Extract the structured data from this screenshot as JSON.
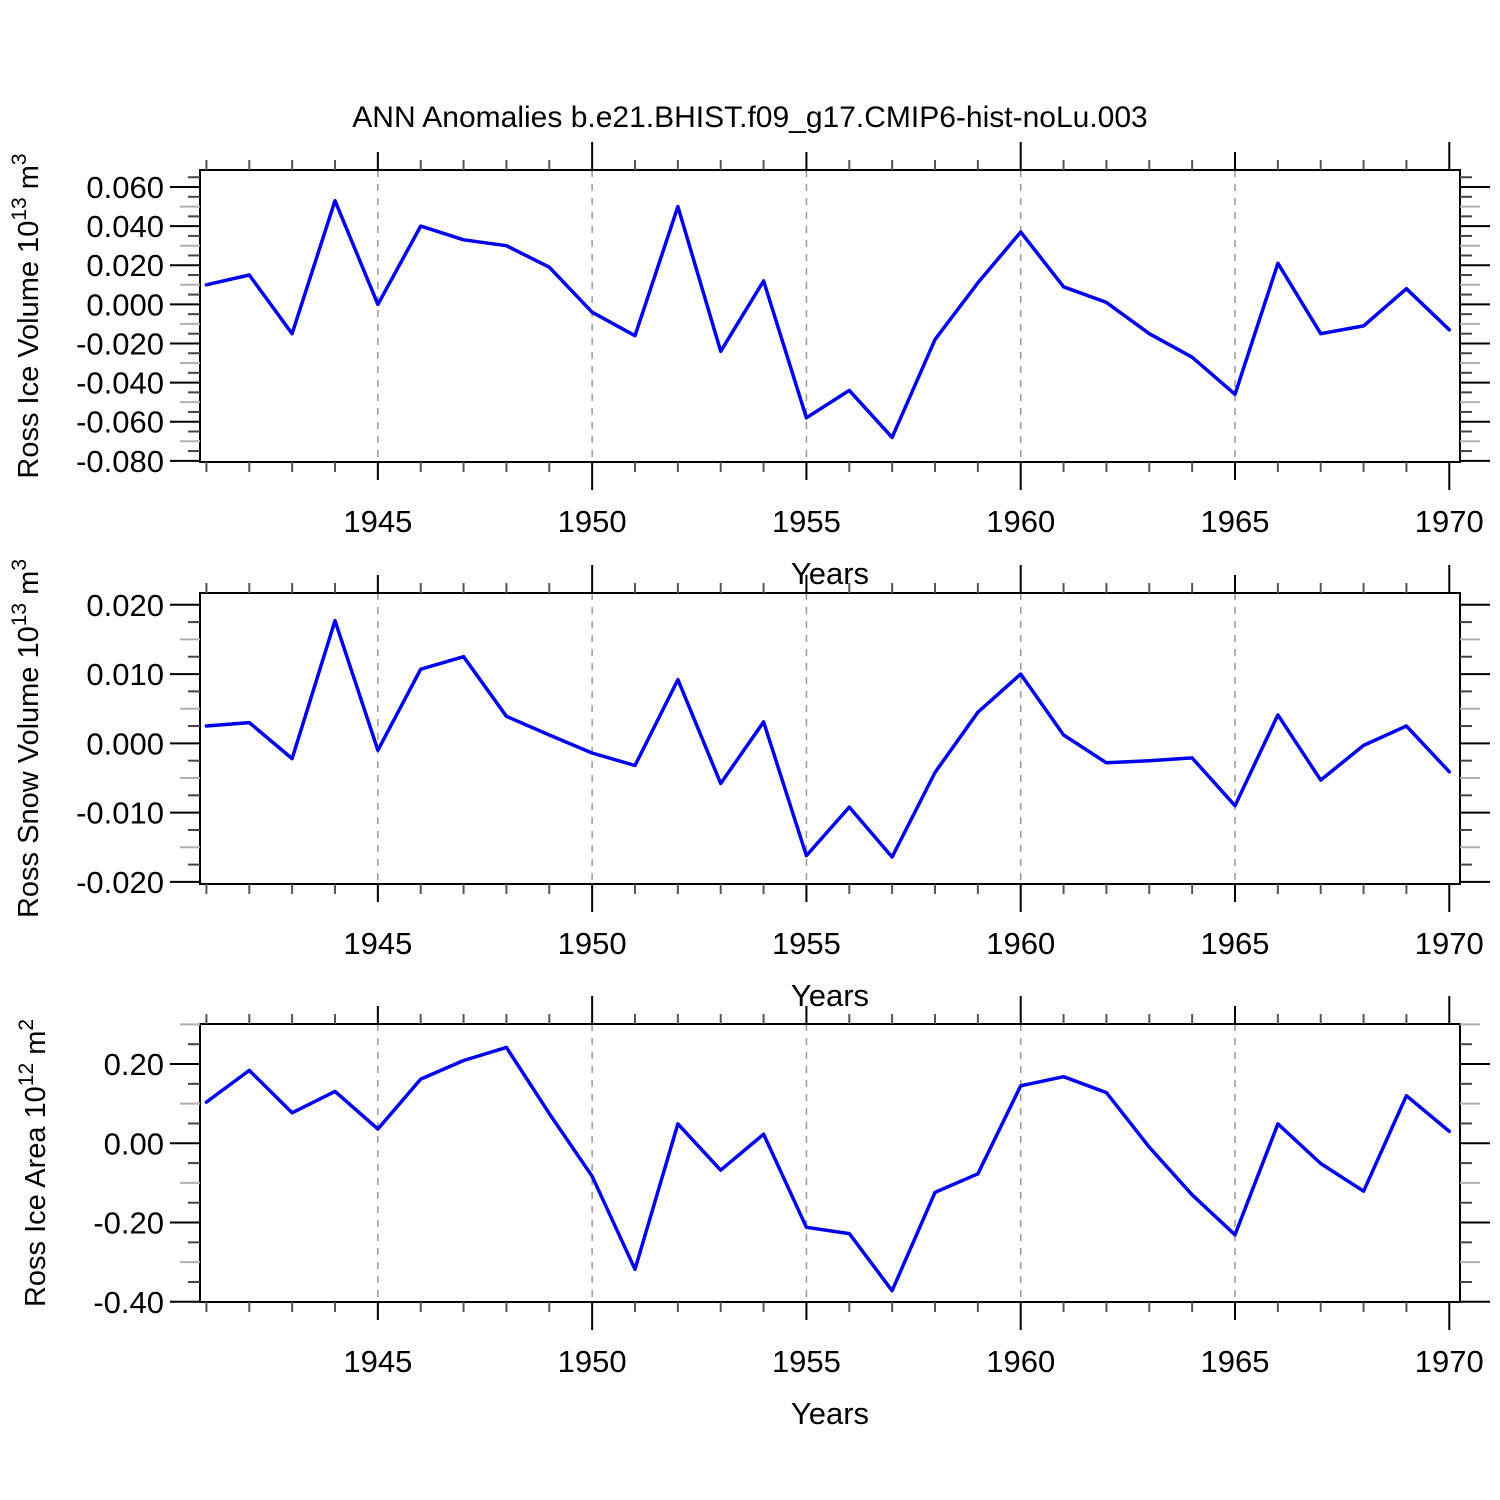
{
  "chart_data": {
    "type": "line",
    "title": "ANN Anomalies b.e21.BHIST.f09_g17.CMIP6-hist-noLu.003",
    "xlabel": "Years",
    "x": [
      1941,
      1942,
      1943,
      1944,
      1945,
      1946,
      1947,
      1948,
      1949,
      1950,
      1951,
      1952,
      1953,
      1954,
      1955,
      1956,
      1957,
      1958,
      1959,
      1960,
      1961,
      1962,
      1963,
      1964,
      1965,
      1966,
      1967,
      1968,
      1969,
      1970
    ],
    "xlim": [
      1940.85,
      1970.25
    ],
    "x_tick_labels": [
      "1945",
      "1950",
      "1955",
      "1960",
      "1965",
      "1970"
    ],
    "x_gridlines": [
      1945,
      1950,
      1955,
      1960,
      1965
    ],
    "grid_on": true,
    "legend": "none",
    "line_color": "#0000EE",
    "gridline_color": "#999999",
    "frame_color": "#000000",
    "background": "#ffffff",
    "panels": [
      {
        "name": "ross-ice-volume",
        "ylabel_parts": [
          {
            "text": "Ross Ice Volume 10"
          },
          {
            "sup": "13"
          },
          {
            "text": " m"
          },
          {
            "sup": "3"
          }
        ],
        "ylim": [
          -0.0806,
          0.0687
        ],
        "y_tick_labels": [
          "0.060",
          "0.040",
          "0.020",
          "0.000",
          "-0.020",
          "-0.040",
          "-0.060",
          "-0.080"
        ],
        "y_major_step": 0.02,
        "y_minor_step": 0.005,
        "values": [
          0.01,
          0.015,
          -0.015,
          0.053,
          0.0,
          0.04,
          0.033,
          0.03,
          0.019,
          -0.004,
          -0.016,
          0.05,
          -0.024,
          0.012,
          -0.058,
          -0.044,
          -0.068,
          -0.018,
          0.011,
          0.037,
          0.009,
          0.001,
          -0.015,
          -0.027,
          -0.046,
          0.021,
          -0.015,
          -0.011,
          0.008,
          -0.013
        ]
      },
      {
        "name": "ross-snow-volume",
        "ylabel_parts": [
          {
            "text": "Ross Snow Volume 10"
          },
          {
            "sup": "13"
          },
          {
            "text": " m"
          },
          {
            "sup": "3"
          }
        ],
        "ylim": [
          -0.0203,
          0.0217
        ],
        "y_tick_labels": [
          "0.020",
          "0.010",
          "0.000",
          "-0.010",
          "-0.020"
        ],
        "y_major_step": 0.01,
        "y_minor_step": 0.0025,
        "values": [
          0.0025,
          0.003,
          -0.0022,
          0.0177,
          -0.001,
          0.0107,
          0.0125,
          0.0039,
          0.0012,
          -0.0014,
          -0.0032,
          0.0092,
          -0.0058,
          0.0031,
          -0.0162,
          -0.0092,
          -0.0164,
          -0.0042,
          0.0045,
          0.01,
          0.0012,
          -0.0028,
          -0.0025,
          -0.0021,
          -0.009,
          0.0041,
          -0.0053,
          -0.0003,
          0.0025,
          -0.0041
        ]
      },
      {
        "name": "ross-ice-area",
        "ylabel_parts": [
          {
            "text": "Ross Ice Area 10"
          },
          {
            "sup": "12"
          },
          {
            "text": " m"
          },
          {
            "sup": "2"
          }
        ],
        "ylim": [
          -0.4005,
          0.301
        ],
        "y_tick_labels": [
          "0.20",
          "0.00",
          "-0.20",
          "-0.40"
        ],
        "y_major_step": 0.2,
        "y_minor_step": 0.05,
        "values": [
          0.104,
          0.184,
          0.077,
          0.131,
          0.036,
          0.162,
          0.209,
          0.242,
          0.075,
          -0.083,
          -0.318,
          0.049,
          -0.068,
          0.023,
          -0.212,
          -0.228,
          -0.372,
          -0.124,
          -0.077,
          0.145,
          0.168,
          0.128,
          -0.01,
          -0.13,
          -0.231,
          0.049,
          -0.051,
          -0.121,
          0.12,
          0.03
        ]
      }
    ]
  }
}
